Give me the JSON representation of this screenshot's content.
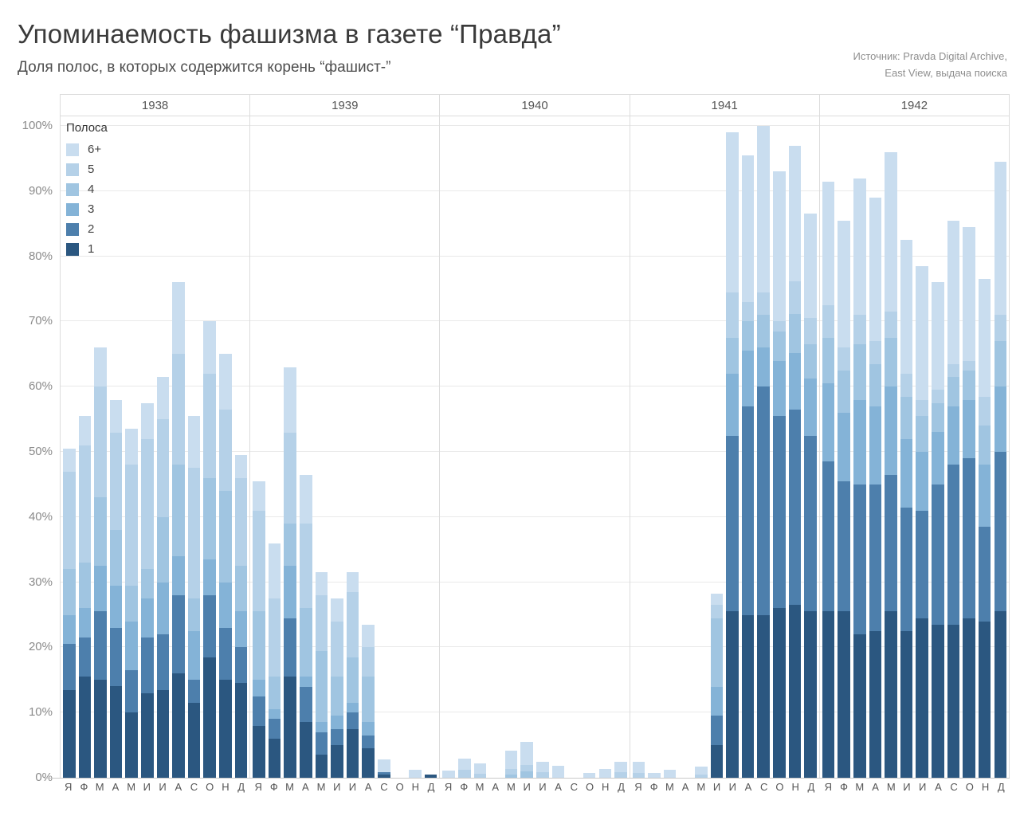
{
  "title": "Упоминаемость фашизма в газете “Правда”",
  "subtitle": "Доля полос, в которых содержится корень “фашист-”",
  "source": {
    "line1": "Источник: Pravda Digital Archive,",
    "line2": "East View, выдача поиска"
  },
  "legend": {
    "title": "Полоса",
    "items": [
      {
        "label": "6+",
        "color": "#c9ddef"
      },
      {
        "label": "5",
        "color": "#b5d1e8"
      },
      {
        "label": "4",
        "color": "#a0c5e1"
      },
      {
        "label": "3",
        "color": "#84b3d7"
      },
      {
        "label": "2",
        "color": "#4d7fac"
      },
      {
        "label": "1",
        "color": "#2b5780"
      }
    ]
  },
  "y_axis": {
    "ticks": [
      "0%",
      "10%",
      "20%",
      "30%",
      "40%",
      "50%",
      "60%",
      "70%",
      "80%",
      "90%",
      "100%"
    ],
    "min": 0,
    "max": 100,
    "grid": true
  },
  "chart_data": {
    "type": "bar",
    "stacked": true,
    "unit": "percent of pages",
    "series_order_bottom_to_top": [
      "1",
      "2",
      "3",
      "4",
      "5",
      "6+"
    ],
    "palette_bottom_to_top": [
      "#2b5780",
      "#4d7fac",
      "#84b3d7",
      "#a0c5e1",
      "#b5d1e8",
      "#c9ddef"
    ],
    "month_labels": [
      "Я",
      "Ф",
      "М",
      "А",
      "М",
      "И",
      "И",
      "А",
      "С",
      "О",
      "Н",
      "Д"
    ],
    "ylim": [
      0,
      100
    ],
    "legend_position": "top-left-inside",
    "years": [
      {
        "year": "1938",
        "months": [
          {
            "m": "Я",
            "segments": [
              13.5,
              7,
              4.5,
              7,
              15,
              3.5
            ]
          },
          {
            "m": "Ф",
            "segments": [
              15.5,
              6,
              4.5,
              7,
              18,
              4.5
            ]
          },
          {
            "m": "М",
            "segments": [
              15,
              10.5,
              7,
              10.5,
              17,
              6
            ]
          },
          {
            "m": "А",
            "segments": [
              14,
              9,
              6.5,
              8.5,
              15,
              5
            ]
          },
          {
            "m": "М",
            "segments": [
              10,
              6.5,
              7.5,
              5.5,
              18.5,
              5.5
            ]
          },
          {
            "m": "И",
            "segments": [
              13,
              8.5,
              6,
              4.5,
              20,
              5.5
            ]
          },
          {
            "m": "И",
            "segments": [
              13.5,
              8.5,
              8,
              10,
              15,
              6.5
            ]
          },
          {
            "m": "А",
            "segments": [
              16,
              12,
              6,
              14,
              17,
              11
            ]
          },
          {
            "m": "С",
            "segments": [
              11.5,
              3.5,
              7.5,
              5,
              20,
              8
            ]
          },
          {
            "m": "О",
            "segments": [
              18.5,
              9.5,
              5.5,
              12.5,
              16,
              8
            ]
          },
          {
            "m": "Н",
            "segments": [
              15,
              8,
              7,
              14,
              12.5,
              8.5
            ]
          },
          {
            "m": "Д",
            "segments": [
              14.5,
              5.5,
              5.5,
              7,
              13.5,
              3.5
            ]
          }
        ]
      },
      {
        "year": "1939",
        "months": [
          {
            "m": "Я",
            "segments": [
              8,
              4.5,
              2.5,
              10.5,
              15.5,
              4.5
            ]
          },
          {
            "m": "Ф",
            "segments": [
              6,
              3,
              1.5,
              5,
              12,
              8.5
            ]
          },
          {
            "m": "М",
            "segments": [
              15.5,
              9,
              8,
              6.5,
              14,
              10
            ]
          },
          {
            "m": "А",
            "segments": [
              8.5,
              5.5,
              1.5,
              10.5,
              13,
              7.5
            ]
          },
          {
            "m": "М",
            "segments": [
              3.5,
              3.5,
              1.5,
              11,
              8.5,
              3.5
            ]
          },
          {
            "m": "И",
            "segments": [
              5,
              2.5,
              2,
              6,
              8.5,
              3.5
            ]
          },
          {
            "m": "И",
            "segments": [
              7.5,
              2.5,
              1.5,
              7,
              10,
              3
            ]
          },
          {
            "m": "А",
            "segments": [
              4.5,
              2,
              2,
              7,
              4.5,
              3.5
            ]
          },
          {
            "m": "С",
            "segments": [
              0.5,
              0.4,
              0,
              0,
              0,
              1.9
            ]
          },
          {
            "m": "О",
            "segments": [
              0,
              0,
              0,
              0,
              0,
              0
            ]
          },
          {
            "m": "Н",
            "segments": [
              0,
              0,
              0,
              0,
              0,
              1.2
            ]
          },
          {
            "m": "Д",
            "segments": [
              0.5,
              0,
              0,
              0,
              0,
              0
            ]
          }
        ]
      },
      {
        "year": "1940",
        "months": [
          {
            "m": "Я",
            "segments": [
              0,
              0,
              0,
              0,
              0,
              1.1
            ]
          },
          {
            "m": "Ф",
            "segments": [
              0,
              0,
              0,
              0,
              1.2,
              1.7
            ]
          },
          {
            "m": "М",
            "segments": [
              0,
              0,
              0,
              0,
              0.6,
              1.6
            ]
          },
          {
            "m": "А",
            "segments": [
              0,
              0,
              0,
              0,
              0,
              0
            ]
          },
          {
            "m": "М",
            "segments": [
              0,
              0,
              0,
              0.5,
              0.9,
              2.8
            ]
          },
          {
            "m": "И",
            "segments": [
              0,
              0,
              0,
              1,
              1,
              3.5
            ]
          },
          {
            "m": "И",
            "segments": [
              0,
              0,
              0,
              0,
              0.8,
              1.6
            ]
          },
          {
            "m": "А",
            "segments": [
              0,
              0,
              0,
              0,
              0,
              1.8
            ]
          },
          {
            "m": "С",
            "segments": [
              0,
              0,
              0,
              0,
              0,
              0
            ]
          },
          {
            "m": "О",
            "segments": [
              0,
              0,
              0,
              0,
              0,
              0.7
            ]
          },
          {
            "m": "Н",
            "segments": [
              0,
              0,
              0,
              0,
              0,
              1.3
            ]
          },
          {
            "m": "Д",
            "segments": [
              0,
              0,
              0,
              0,
              0.8,
              1.7
            ]
          }
        ]
      },
      {
        "year": "1941",
        "months": [
          {
            "m": "Я",
            "segments": [
              0,
              0,
              0,
              0,
              0.7,
              1.8
            ]
          },
          {
            "m": "Ф",
            "segments": [
              0,
              0,
              0,
              0,
              0,
              0.7
            ]
          },
          {
            "m": "М",
            "segments": [
              0,
              0,
              0,
              0,
              0,
              1.2
            ]
          },
          {
            "m": "А",
            "segments": [
              0,
              0,
              0,
              0,
              0,
              0
            ]
          },
          {
            "m": "М",
            "segments": [
              0,
              0,
              0,
              0,
              0.5,
              1.2
            ]
          },
          {
            "m": "И",
            "segments": [
              5,
              4.5,
              4.5,
              10.5,
              2,
              1.7
            ]
          },
          {
            "m": "И",
            "segments": [
              25.5,
              27,
              9.5,
              5.5,
              7,
              24.5
            ]
          },
          {
            "m": "А",
            "segments": [
              25,
              32,
              8.5,
              4.5,
              3,
              22.5
            ]
          },
          {
            "m": "С",
            "segments": [
              25,
              35,
              6,
              5,
              3.5,
              25.5
            ]
          },
          {
            "m": "О",
            "segments": [
              26,
              29.5,
              8.5,
              4.5,
              1.5,
              23
            ]
          },
          {
            "m": "Н",
            "segments": [
              26.5,
              30,
              8.7,
              6,
              5,
              20.8
            ]
          },
          {
            "m": "Д",
            "segments": [
              25.5,
              27,
              8.7,
              5.3,
              4,
              16
            ]
          }
        ]
      },
      {
        "year": "1942",
        "months": [
          {
            "m": "Я",
            "segments": [
              25.5,
              23,
              12,
              7,
              5,
              19
            ]
          },
          {
            "m": "Ф",
            "segments": [
              25.5,
              20,
              10.5,
              6.5,
              3.5,
              19.5
            ]
          },
          {
            "m": "М",
            "segments": [
              22,
              23,
              13,
              8.5,
              4.5,
              21
            ]
          },
          {
            "m": "А",
            "segments": [
              22.5,
              22.5,
              12,
              6.5,
              3.5,
              22
            ]
          },
          {
            "m": "М",
            "segments": [
              25.5,
              21,
              13.5,
              7.5,
              4,
              24.5
            ]
          },
          {
            "m": "И",
            "segments": [
              22.5,
              19,
              10.5,
              6.5,
              3.5,
              20.5
            ]
          },
          {
            "m": "И",
            "segments": [
              24.5,
              16.5,
              9,
              5.5,
              2.5,
              20.5
            ]
          },
          {
            "m": "А",
            "segments": [
              23.5,
              21.5,
              8,
              4.5,
              2,
              16.5
            ]
          },
          {
            "m": "С",
            "segments": [
              23.5,
              24.5,
              9,
              4.5,
              2,
              22
            ]
          },
          {
            "m": "О",
            "segments": [
              24.5,
              24.5,
              9,
              4.5,
              1.5,
              20.5
            ]
          },
          {
            "m": "Н",
            "segments": [
              24,
              14.5,
              9.5,
              6,
              4.5,
              18
            ]
          },
          {
            "m": "Д",
            "segments": [
              25.5,
              24.5,
              10,
              7,
              4,
              23.5
            ]
          }
        ]
      }
    ]
  }
}
